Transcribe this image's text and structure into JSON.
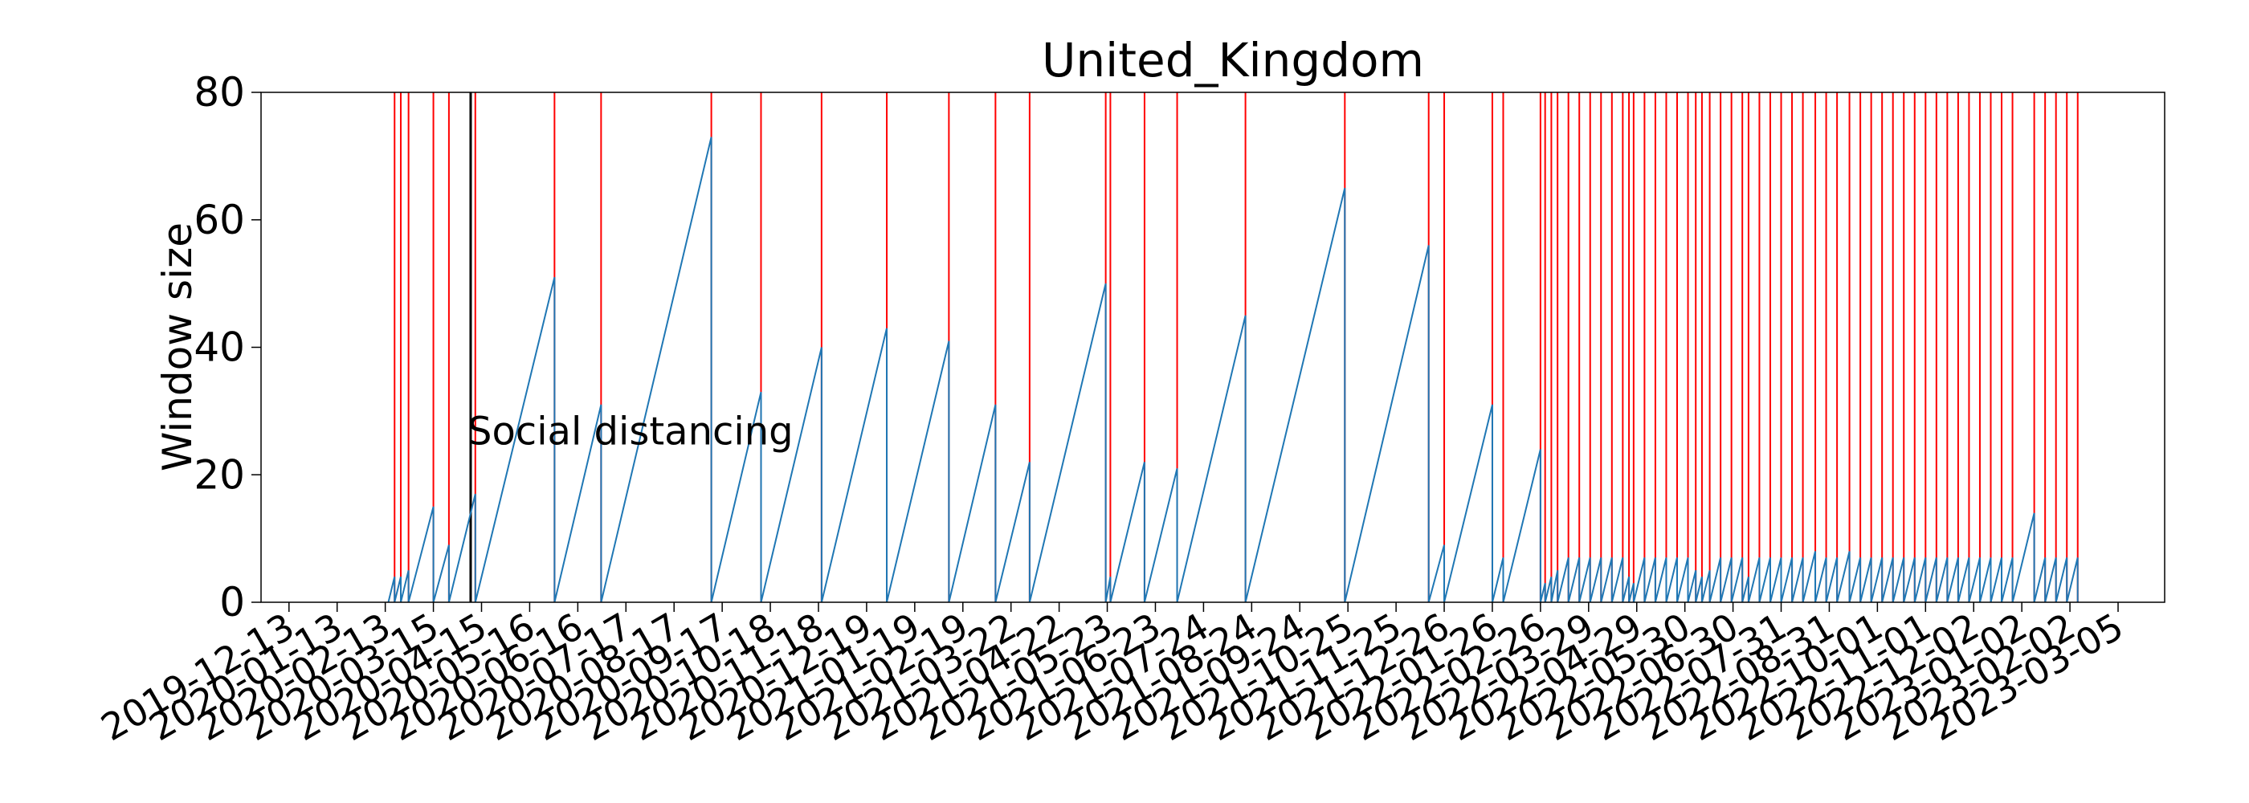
{
  "chart_data": {
    "type": "line",
    "title": "United_Kingdom",
    "xlabel": "",
    "ylabel": "Window size",
    "ylim": [
      0,
      80
    ],
    "xlim": [
      "2019-11-25",
      "2023-04-04"
    ],
    "yticks": [
      0,
      20,
      40,
      60,
      80
    ],
    "xticks": [
      "2019-12-13",
      "2020-01-13",
      "2020-02-13",
      "2020-03-15",
      "2020-04-15",
      "2020-05-16",
      "2020-06-16",
      "2020-07-17",
      "2020-08-17",
      "2020-09-17",
      "2020-10-18",
      "2020-11-18",
      "2020-12-19",
      "2021-01-19",
      "2021-02-19",
      "2021-03-22",
      "2021-04-22",
      "2021-05-23",
      "2021-06-23",
      "2021-07-24",
      "2021-08-24",
      "2021-09-24",
      "2021-10-25",
      "2021-11-25",
      "2021-12-26",
      "2022-01-26",
      "2022-02-26",
      "2022-03-29",
      "2022-04-29",
      "2022-05-30",
      "2022-06-30",
      "2022-07-31",
      "2022-08-31",
      "2022-10-01",
      "2022-11-01",
      "2022-12-02",
      "2023-01-02",
      "2023-02-02",
      "2023-03-05"
    ],
    "grid": false,
    "series": [
      {
        "color": "#1f77b4",
        "points": [
          [
            "2020-02-15",
            0
          ],
          [
            "2020-02-19",
            4
          ],
          [
            "2020-02-19",
            0
          ],
          [
            "2020-02-23",
            4
          ],
          [
            "2020-02-23",
            0
          ],
          [
            "2020-02-28",
            5
          ],
          [
            "2020-02-28",
            0
          ],
          [
            "2020-03-15",
            15
          ],
          [
            "2020-03-15",
            0
          ],
          [
            "2020-03-25",
            9
          ],
          [
            "2020-03-25",
            0
          ],
          [
            "2020-04-11",
            17
          ],
          [
            "2020-04-11",
            0
          ],
          [
            "2020-06-01",
            51
          ],
          [
            "2020-06-01",
            0
          ],
          [
            "2020-07-01",
            31
          ],
          [
            "2020-07-01",
            0
          ],
          [
            "2020-09-10",
            73
          ],
          [
            "2020-09-10",
            0
          ],
          [
            "2020-10-12",
            33
          ],
          [
            "2020-10-12",
            0
          ],
          [
            "2020-11-20",
            40
          ],
          [
            "2020-11-20",
            0
          ],
          [
            "2021-01-01",
            43
          ],
          [
            "2021-01-01",
            0
          ],
          [
            "2021-02-10",
            41
          ],
          [
            "2021-02-10",
            0
          ],
          [
            "2021-03-12",
            31
          ],
          [
            "2021-03-12",
            0
          ],
          [
            "2021-04-03",
            22
          ],
          [
            "2021-04-03",
            0
          ],
          [
            "2021-05-22",
            50
          ],
          [
            "2021-05-22",
            0
          ],
          [
            "2021-05-25",
            4
          ],
          [
            "2021-05-25",
            0
          ],
          [
            "2021-06-16",
            22
          ],
          [
            "2021-06-16",
            0
          ],
          [
            "2021-07-07",
            21
          ],
          [
            "2021-07-07",
            0
          ],
          [
            "2021-08-20",
            45
          ],
          [
            "2021-08-20",
            0
          ],
          [
            "2021-10-23",
            65
          ],
          [
            "2021-10-23",
            0
          ],
          [
            "2021-12-16",
            56
          ],
          [
            "2021-12-16",
            0
          ],
          [
            "2021-12-26",
            9
          ],
          [
            "2021-12-26",
            0
          ],
          [
            "2022-01-26",
            31
          ],
          [
            "2022-01-26",
            0
          ],
          [
            "2022-02-02",
            7
          ],
          [
            "2022-02-02",
            0
          ],
          [
            "2022-02-26",
            24
          ],
          [
            "2022-02-26",
            0
          ],
          [
            "2022-03-01",
            3
          ],
          [
            "2022-03-01",
            0
          ],
          [
            "2022-03-05",
            4
          ],
          [
            "2022-03-05",
            0
          ],
          [
            "2022-03-09",
            5
          ],
          [
            "2022-03-09",
            0
          ],
          [
            "2022-03-16",
            7
          ],
          [
            "2022-03-16",
            0
          ],
          [
            "2022-03-23",
            7
          ],
          [
            "2022-03-23",
            0
          ],
          [
            "2022-03-30",
            7
          ],
          [
            "2022-03-30",
            0
          ],
          [
            "2022-04-06",
            7
          ],
          [
            "2022-04-06",
            0
          ],
          [
            "2022-04-13",
            7
          ],
          [
            "2022-04-13",
            0
          ],
          [
            "2022-04-20",
            7
          ],
          [
            "2022-04-20",
            0
          ],
          [
            "2022-04-24",
            4
          ],
          [
            "2022-04-24",
            0
          ],
          [
            "2022-04-27",
            3
          ],
          [
            "2022-04-27",
            0
          ],
          [
            "2022-05-04",
            7
          ],
          [
            "2022-05-04",
            0
          ],
          [
            "2022-05-11",
            7
          ],
          [
            "2022-05-11",
            0
          ],
          [
            "2022-05-18",
            7
          ],
          [
            "2022-05-18",
            0
          ],
          [
            "2022-05-25",
            7
          ],
          [
            "2022-05-25",
            0
          ],
          [
            "2022-06-01",
            7
          ],
          [
            "2022-06-01",
            0
          ],
          [
            "2022-06-06",
            5
          ],
          [
            "2022-06-06",
            0
          ],
          [
            "2022-06-10",
            4
          ],
          [
            "2022-06-10",
            0
          ],
          [
            "2022-06-15",
            5
          ],
          [
            "2022-06-15",
            0
          ],
          [
            "2022-06-22",
            7
          ],
          [
            "2022-06-22",
            0
          ],
          [
            "2022-06-29",
            7
          ],
          [
            "2022-06-29",
            0
          ],
          [
            "2022-07-06",
            7
          ],
          [
            "2022-07-06",
            0
          ],
          [
            "2022-07-10",
            4
          ],
          [
            "2022-07-10",
            0
          ],
          [
            "2022-07-17",
            7
          ],
          [
            "2022-07-17",
            0
          ],
          [
            "2022-07-24",
            7
          ],
          [
            "2022-07-24",
            0
          ],
          [
            "2022-07-31",
            7
          ],
          [
            "2022-07-31",
            0
          ],
          [
            "2022-08-07",
            7
          ],
          [
            "2022-08-07",
            0
          ],
          [
            "2022-08-14",
            7
          ],
          [
            "2022-08-14",
            0
          ],
          [
            "2022-08-22",
            8
          ],
          [
            "2022-08-22",
            0
          ],
          [
            "2022-08-29",
            7
          ],
          [
            "2022-08-29",
            0
          ],
          [
            "2022-09-05",
            7
          ],
          [
            "2022-09-05",
            0
          ],
          [
            "2022-09-13",
            8
          ],
          [
            "2022-09-13",
            0
          ],
          [
            "2022-09-20",
            7
          ],
          [
            "2022-09-20",
            0
          ],
          [
            "2022-09-27",
            7
          ],
          [
            "2022-09-27",
            0
          ],
          [
            "2022-10-04",
            7
          ],
          [
            "2022-10-04",
            0
          ],
          [
            "2022-10-11",
            7
          ],
          [
            "2022-10-11",
            0
          ],
          [
            "2022-10-18",
            7
          ],
          [
            "2022-10-18",
            0
          ],
          [
            "2022-10-25",
            7
          ],
          [
            "2022-10-25",
            0
          ],
          [
            "2022-11-01",
            7
          ],
          [
            "2022-11-01",
            0
          ],
          [
            "2022-11-08",
            7
          ],
          [
            "2022-11-08",
            0
          ],
          [
            "2022-11-15",
            7
          ],
          [
            "2022-11-15",
            0
          ],
          [
            "2022-11-22",
            7
          ],
          [
            "2022-11-22",
            0
          ],
          [
            "2022-11-29",
            7
          ],
          [
            "2022-11-29",
            0
          ],
          [
            "2022-12-06",
            7
          ],
          [
            "2022-12-06",
            0
          ],
          [
            "2022-12-13",
            7
          ],
          [
            "2022-12-13",
            0
          ],
          [
            "2022-12-20",
            7
          ],
          [
            "2022-12-20",
            0
          ],
          [
            "2022-12-27",
            7
          ],
          [
            "2022-12-27",
            0
          ],
          [
            "2023-01-10",
            14
          ],
          [
            "2023-01-10",
            0
          ],
          [
            "2023-01-17",
            7
          ],
          [
            "2023-01-17",
            0
          ],
          [
            "2023-01-24",
            7
          ],
          [
            "2023-01-24",
            0
          ],
          [
            "2023-01-31",
            7
          ],
          [
            "2023-01-31",
            0
          ],
          [
            "2023-02-07",
            7
          ],
          [
            "2023-02-07",
            0
          ],
          [
            "2023-02-07",
            1
          ]
        ]
      }
    ],
    "red_lines": [
      "2020-02-19",
      "2020-02-23",
      "2020-02-28",
      "2020-03-15",
      "2020-03-25",
      "2020-04-11",
      "2020-06-01",
      "2020-07-01",
      "2020-09-10",
      "2020-10-12",
      "2020-11-20",
      "2021-01-01",
      "2021-02-10",
      "2021-03-12",
      "2021-04-03",
      "2021-05-22",
      "2021-05-25",
      "2021-06-16",
      "2021-07-07",
      "2021-08-20",
      "2021-10-23",
      "2021-12-16",
      "2021-12-26",
      "2022-01-26",
      "2022-02-02",
      "2022-02-26",
      "2022-03-01",
      "2022-03-05",
      "2022-03-09",
      "2022-03-16",
      "2022-03-23",
      "2022-03-30",
      "2022-04-06",
      "2022-04-13",
      "2022-04-20",
      "2022-04-24",
      "2022-04-27",
      "2022-05-04",
      "2022-05-11",
      "2022-05-18",
      "2022-05-25",
      "2022-06-01",
      "2022-06-06",
      "2022-06-10",
      "2022-06-15",
      "2022-06-22",
      "2022-06-29",
      "2022-07-06",
      "2022-07-10",
      "2022-07-17",
      "2022-07-24",
      "2022-07-31",
      "2022-08-07",
      "2022-08-14",
      "2022-08-22",
      "2022-08-29",
      "2022-09-05",
      "2022-09-13",
      "2022-09-20",
      "2022-09-27",
      "2022-10-04",
      "2022-10-11",
      "2022-10-18",
      "2022-10-25",
      "2022-11-01",
      "2022-11-08",
      "2022-11-15",
      "2022-11-22",
      "2022-11-29",
      "2022-12-06",
      "2022-12-13",
      "2022-12-20",
      "2022-12-27",
      "2023-01-10",
      "2023-01-17",
      "2023-01-24",
      "2023-01-31",
      "2023-02-07"
    ],
    "red_line_color": "#ff0000",
    "annotations": [
      {
        "date": "2020-04-08",
        "label": "Social distancing",
        "color": "#000000",
        "label_y": 27
      }
    ]
  }
}
